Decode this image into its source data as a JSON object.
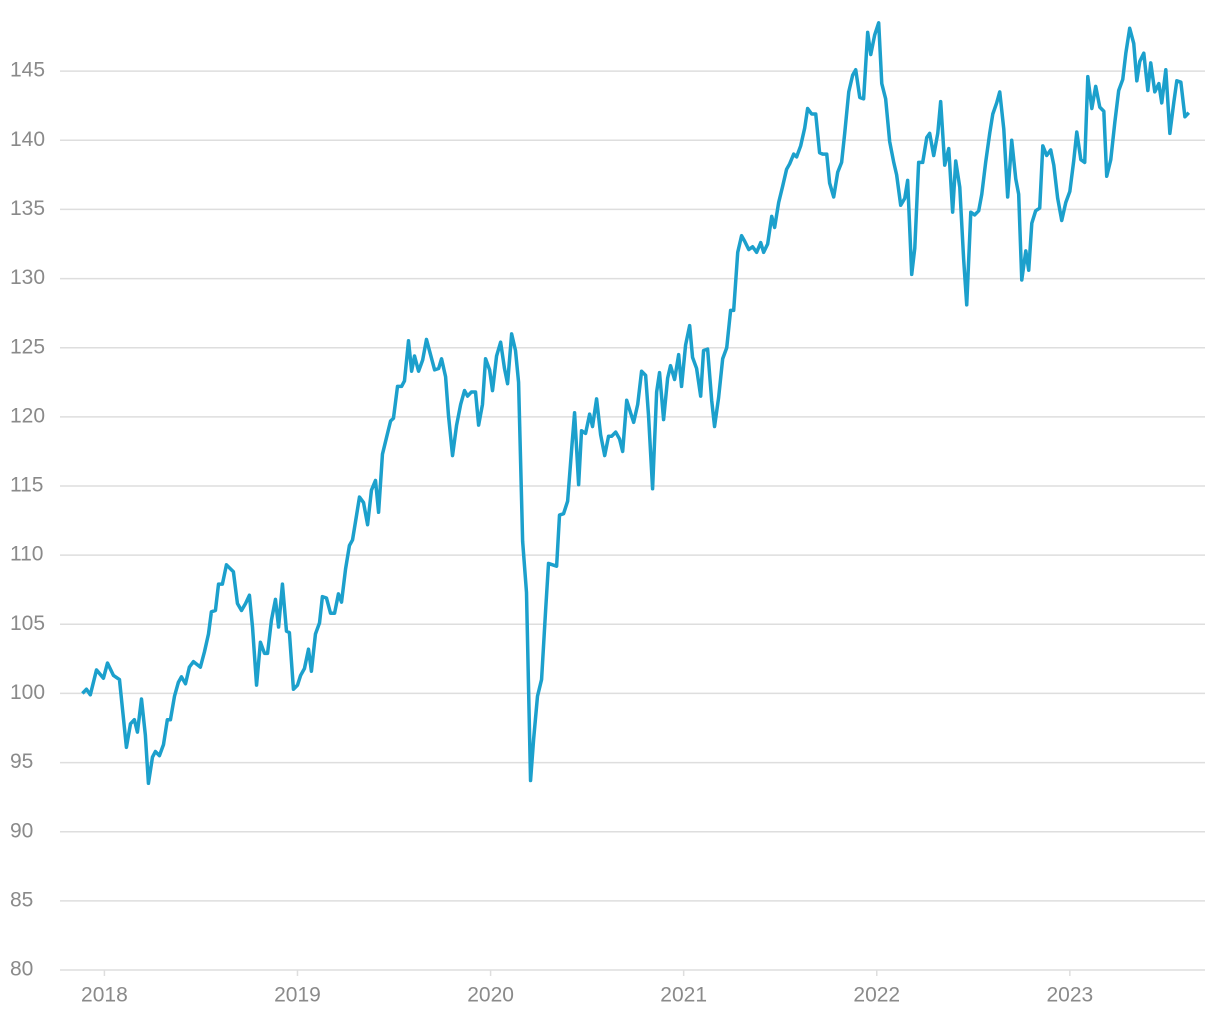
{
  "chart_data": {
    "type": "line",
    "x": [
      2017.886,
      2017.907,
      2017.927,
      2017.959,
      2017.995,
      2018.016,
      2018.047,
      2018.078,
      2018.114,
      2018.135,
      2018.155,
      2018.171,
      2018.192,
      2018.212,
      2018.228,
      2018.249,
      2018.264,
      2018.285,
      2018.306,
      2018.326,
      2018.342,
      2018.363,
      2018.383,
      2018.399,
      2018.42,
      2018.44,
      2018.461,
      2018.497,
      2018.518,
      2018.539,
      2018.554,
      2018.575,
      2018.591,
      2018.611,
      2018.632,
      2018.668,
      2018.689,
      2018.71,
      2018.731,
      2018.751,
      2018.767,
      2018.788,
      2018.808,
      2018.829,
      2018.845,
      2018.865,
      2018.886,
      2018.902,
      2018.922,
      2018.943,
      2018.958,
      2018.979,
      2019.0,
      2019.016,
      2019.036,
      2019.057,
      2019.072,
      2019.093,
      2019.114,
      2019.129,
      2019.15,
      2019.171,
      2019.192,
      2019.212,
      2019.228,
      2019.249,
      2019.269,
      2019.285,
      2019.306,
      2019.321,
      2019.342,
      2019.363,
      2019.383,
      2019.404,
      2019.42,
      2019.44,
      2019.461,
      2019.482,
      2019.497,
      2019.518,
      2019.539,
      2019.554,
      2019.575,
      2019.591,
      2019.606,
      2019.627,
      2019.648,
      2019.668,
      2019.689,
      2019.71,
      2019.731,
      2019.746,
      2019.767,
      2019.782,
      2019.803,
      2019.824,
      2019.845,
      2019.865,
      2019.881,
      2019.901,
      2019.922,
      2019.938,
      2019.958,
      2019.974,
      2019.995,
      2020.01,
      2020.031,
      2020.052,
      2020.072,
      2020.088,
      2020.109,
      2020.129,
      2020.145,
      2020.166,
      2020.186,
      2020.207,
      2020.223,
      2020.243,
      2020.264,
      2020.285,
      2020.3,
      2020.321,
      2020.342,
      2020.357,
      2020.378,
      2020.399,
      2020.42,
      2020.435,
      2020.456,
      2020.471,
      2020.492,
      2020.513,
      2020.528,
      2020.549,
      2020.57,
      2020.591,
      2020.611,
      2020.627,
      2020.648,
      2020.668,
      2020.684,
      2020.705,
      2020.725,
      2020.741,
      2020.762,
      2020.782,
      2020.803,
      2020.818,
      2020.839,
      2020.86,
      2020.875,
      2020.896,
      2020.917,
      2020.932,
      2020.953,
      2020.974,
      2020.989,
      2021.01,
      2021.031,
      2021.046,
      2021.067,
      2021.088,
      2021.103,
      2021.124,
      2021.145,
      2021.16,
      2021.181,
      2021.202,
      2021.223,
      2021.243,
      2021.259,
      2021.28,
      2021.3,
      2021.316,
      2021.337,
      2021.357,
      2021.378,
      2021.399,
      2021.414,
      2021.435,
      2021.456,
      2021.471,
      2021.492,
      2021.513,
      2021.533,
      2021.549,
      2021.57,
      2021.585,
      2021.606,
      2021.627,
      2021.642,
      2021.663,
      2021.684,
      2021.704,
      2021.72,
      2021.741,
      2021.756,
      2021.777,
      2021.798,
      2021.818,
      2021.834,
      2021.855,
      2021.875,
      2021.891,
      2021.912,
      2021.932,
      2021.953,
      2021.969,
      2021.989,
      2022.01,
      2022.026,
      2022.046,
      2022.067,
      2022.088,
      2022.103,
      2022.124,
      2022.145,
      2022.16,
      2022.181,
      2022.197,
      2022.217,
      2022.238,
      2022.259,
      2022.274,
      2022.295,
      2022.316,
      2022.331,
      2022.352,
      2022.373,
      2022.393,
      2022.409,
      2022.43,
      2022.45,
      2022.466,
      2022.487,
      2022.507,
      2022.528,
      2022.544,
      2022.564,
      2022.585,
      2022.601,
      2022.621,
      2022.637,
      2022.658,
      2022.678,
      2022.699,
      2022.72,
      2022.735,
      2022.751,
      2022.772,
      2022.787,
      2022.803,
      2022.823,
      2022.844,
      2022.86,
      2022.88,
      2022.901,
      2022.917,
      2022.937,
      2022.958,
      2022.979,
      2023.0,
      2023.02,
      2023.036,
      2023.057,
      2023.077,
      2023.093,
      2023.114,
      2023.134,
      2023.155,
      2023.176,
      2023.191,
      2023.212,
      2023.233,
      2023.253,
      2023.274,
      2023.29,
      2023.31,
      2023.331,
      2023.347,
      2023.362,
      2023.383,
      2023.404,
      2023.419,
      2023.44,
      2023.461,
      2023.476,
      2023.497,
      2023.518,
      2023.539,
      2023.554,
      2023.575,
      2023.596,
      2023.616
    ],
    "values": [
      100.0,
      100.3,
      99.9,
      101.7,
      101.1,
      102.2,
      101.3,
      101.0,
      96.1,
      97.8,
      98.1,
      97.2,
      99.6,
      97.0,
      93.5,
      95.4,
      95.8,
      95.5,
      96.3,
      98.1,
      98.1,
      99.8,
      100.8,
      101.2,
      100.7,
      101.9,
      102.3,
      101.9,
      103.0,
      104.3,
      105.9,
      106.0,
      107.9,
      107.9,
      109.3,
      108.8,
      106.5,
      106.0,
      106.5,
      107.1,
      104.8,
      100.6,
      103.7,
      102.9,
      102.9,
      105.3,
      106.8,
      104.8,
      107.9,
      104.5,
      104.4,
      100.3,
      100.6,
      101.3,
      101.8,
      103.2,
      101.6,
      104.3,
      105.1,
      107.0,
      106.9,
      105.8,
      105.8,
      107.2,
      106.6,
      109.0,
      110.7,
      111.1,
      112.9,
      114.2,
      113.8,
      112.2,
      114.7,
      115.4,
      113.1,
      117.3,
      118.5,
      119.7,
      119.9,
      122.2,
      122.2,
      122.6,
      125.5,
      123.3,
      124.4,
      123.3,
      124.1,
      125.6,
      124.5,
      123.4,
      123.5,
      124.2,
      122.9,
      120.1,
      117.2,
      119.4,
      120.9,
      121.9,
      121.5,
      121.8,
      121.8,
      119.4,
      120.9,
      124.2,
      123.4,
      121.9,
      124.4,
      125.4,
      123.5,
      122.4,
      126.0,
      124.8,
      122.5,
      111.0,
      107.3,
      93.7,
      96.7,
      99.8,
      101.0,
      106.0,
      109.4,
      109.3,
      109.2,
      112.9,
      113.0,
      113.9,
      117.7,
      120.3,
      115.1,
      119.0,
      118.8,
      120.2,
      119.3,
      121.3,
      118.7,
      117.2,
      118.6,
      118.6,
      118.9,
      118.4,
      117.5,
      121.2,
      120.3,
      119.6,
      120.9,
      123.3,
      123.0,
      120.1,
      114.8,
      121.8,
      123.2,
      119.8,
      122.8,
      123.7,
      122.7,
      124.5,
      122.2,
      125.2,
      126.6,
      124.3,
      123.5,
      121.5,
      124.8,
      124.9,
      121.2,
      119.3,
      121.4,
      124.2,
      125.0,
      127.7,
      127.7,
      131.9,
      133.1,
      132.7,
      132.1,
      132.3,
      131.9,
      132.6,
      131.9,
      132.5,
      134.5,
      133.7,
      135.5,
      136.7,
      137.9,
      138.3,
      139.0,
      138.8,
      139.6,
      140.9,
      142.3,
      141.9,
      141.9,
      139.1,
      139.0,
      139.0,
      136.9,
      135.9,
      137.7,
      138.4,
      140.5,
      143.5,
      144.7,
      145.1,
      143.1,
      143.0,
      147.8,
      146.2,
      147.6,
      148.5,
      144.1,
      143.0,
      139.9,
      138.4,
      137.5,
      135.3,
      135.8,
      137.1,
      130.3,
      132.2,
      138.4,
      138.4,
      140.2,
      140.5,
      138.9,
      140.5,
      142.8,
      138.2,
      139.4,
      134.8,
      138.5,
      136.6,
      131.4,
      128.1,
      134.8,
      134.6,
      134.9,
      136.1,
      138.4,
      140.5,
      141.9,
      142.7,
      143.5,
      140.8,
      135.9,
      140.0,
      137.2,
      136.1,
      129.9,
      132.0,
      130.6,
      134.0,
      134.9,
      135.1,
      139.6,
      138.9,
      139.3,
      138.2,
      135.8,
      134.2,
      135.5,
      136.3,
      138.5,
      140.6,
      138.6,
      138.4,
      144.6,
      142.3,
      143.9,
      142.4,
      142.1,
      137.4,
      138.6,
      141.3,
      143.6,
      144.4,
      146.3,
      148.1,
      147.0,
      144.3,
      145.7,
      146.3,
      143.6,
      145.6,
      143.5,
      144.1,
      142.7,
      145.1,
      140.5,
      142.8,
      144.3,
      144.2,
      141.7,
      142.0
    ],
    "color": "#1ca0cc",
    "xlim": [
      2017.77,
      2023.7
    ],
    "xticks": [
      2018,
      2019,
      2020,
      2021,
      2022,
      2023
    ],
    "ylim": [
      80,
      150
    ],
    "yticks": [
      80,
      85,
      90,
      95,
      100,
      105,
      110,
      115,
      120,
      125,
      130,
      135,
      140,
      145
    ],
    "grid": true
  }
}
